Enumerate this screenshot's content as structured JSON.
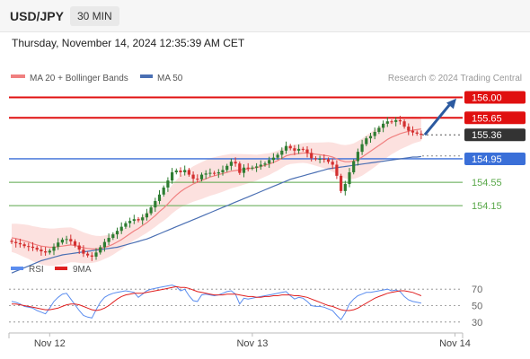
{
  "header": {
    "pair": "USD/JPY",
    "timeframe": "30 MIN",
    "timestamp": "Thursday, November 14, 2024 12:35:39 AM CET",
    "credit": "Research © 2024 Trading Central"
  },
  "colors": {
    "up": "#2e7d32",
    "down": "#d32f2f",
    "resistance": "#e01010",
    "support": "#3a6fd8",
    "target": "#5aa84a",
    "ma20": "#f08080",
    "ma50": "#4a6fb3",
    "band": "#fbd7d4",
    "rsi": "#5b8def",
    "rsi_ma": "#e02020",
    "arrow": "#2c5aa0",
    "current": "#333333"
  },
  "chart_data": [
    {
      "type": "candlestick",
      "name": "price",
      "legend": [
        {
          "label": "MA 20 + Bollinger Bands",
          "color": "#f08080"
        },
        {
          "label": "MA 50",
          "color": "#4a6fb3"
        }
      ],
      "ylim": [
        153.34,
        156.13
      ],
      "x_ticks": [
        {
          "label": "Nov 12",
          "index": 9
        },
        {
          "label": "Nov 13",
          "index": 57
        },
        {
          "label": "Nov 14",
          "index": 105
        }
      ],
      "levels": [
        {
          "label": "156.00",
          "value": 156.0,
          "kind": "resistance"
        },
        {
          "label": "155.65",
          "value": 155.65,
          "kind": "resistance"
        },
        {
          "label": "155.36",
          "value": 155.36,
          "kind": "current"
        },
        {
          "label": "154.95",
          "value": 154.95,
          "kind": "support"
        },
        {
          "label": "154.55",
          "value": 154.55,
          "kind": "target"
        },
        {
          "label": "154.15",
          "value": 154.15,
          "kind": "target"
        }
      ],
      "close": [
        153.53,
        153.51,
        153.49,
        153.46,
        153.45,
        153.43,
        153.4,
        153.37,
        153.35,
        153.38,
        153.45,
        153.52,
        153.57,
        153.58,
        153.54,
        153.47,
        153.4,
        153.33,
        153.3,
        153.28,
        153.35,
        153.44,
        153.53,
        153.6,
        153.66,
        153.72,
        153.79,
        153.85,
        153.89,
        153.92,
        153.9,
        153.95,
        154.02,
        154.12,
        154.23,
        154.34,
        154.46,
        154.58,
        154.72,
        154.75,
        154.72,
        154.76,
        154.68,
        154.61,
        154.6,
        154.68,
        154.7,
        154.71,
        154.7,
        154.72,
        154.76,
        154.83,
        154.9,
        154.87,
        154.71,
        154.8,
        154.79,
        154.8,
        154.82,
        154.85,
        154.87,
        154.93,
        154.97,
        155.02,
        155.09,
        155.17,
        155.13,
        155.09,
        155.12,
        155.11,
        155.05,
        154.96,
        154.95,
        154.95,
        154.94,
        154.9,
        154.85,
        154.66,
        154.4,
        154.52,
        154.72,
        154.91,
        155.07,
        155.2,
        155.3,
        155.34,
        155.41,
        155.48,
        155.55,
        155.59,
        155.58,
        155.61,
        155.59,
        155.5,
        155.43,
        155.4,
        155.38,
        155.36
      ],
      "ma20": [
        153.6,
        153.59,
        153.57,
        153.55,
        153.53,
        153.5,
        153.48,
        153.46,
        153.45,
        153.44,
        153.44,
        153.45,
        153.46,
        153.47,
        153.48,
        153.47,
        153.45,
        153.43,
        153.42,
        153.41,
        153.41,
        153.42,
        153.44,
        153.46,
        153.49,
        153.53,
        153.57,
        153.62,
        153.67,
        153.72,
        153.76,
        153.81,
        153.86,
        153.92,
        153.98,
        154.05,
        154.11,
        154.18,
        154.26,
        154.33,
        154.39,
        154.44,
        154.48,
        154.52,
        154.55,
        154.58,
        154.61,
        154.64,
        154.66,
        154.68,
        154.7,
        154.72,
        154.74,
        154.75,
        154.76,
        154.77,
        154.78,
        154.79,
        154.8,
        154.82,
        154.84,
        154.86,
        154.89,
        154.92,
        154.96,
        155.0,
        155.02,
        155.03,
        155.04,
        155.05,
        155.05,
        155.04,
        155.03,
        155.02,
        155.01,
        155.0,
        154.98,
        154.95,
        154.92,
        154.9,
        154.9,
        154.91,
        154.94,
        154.98,
        155.03,
        155.08,
        155.13,
        155.18,
        155.23,
        155.28,
        155.32,
        155.35,
        155.38,
        155.4,
        155.42,
        155.44,
        155.45,
        155.46
      ],
      "ma50": [
        153.0,
        153.03,
        153.06,
        153.09,
        153.12,
        153.15,
        153.18,
        153.21,
        153.23,
        153.25,
        153.27,
        153.29,
        153.31,
        153.32,
        153.33,
        153.34,
        153.35,
        153.36,
        153.37,
        153.38,
        153.39,
        153.4,
        153.41,
        153.42,
        153.43,
        153.44,
        153.46,
        153.48,
        153.5,
        153.52,
        153.54,
        153.56,
        153.58,
        153.61,
        153.64,
        153.67,
        153.7,
        153.73,
        153.76,
        153.79,
        153.82,
        153.85,
        153.88,
        153.91,
        153.94,
        153.97,
        154.0,
        154.03,
        154.06,
        154.09,
        154.12,
        154.15,
        154.18,
        154.21,
        154.24,
        154.27,
        154.3,
        154.33,
        154.36,
        154.39,
        154.42,
        154.45,
        154.48,
        154.51,
        154.54,
        154.57,
        154.6,
        154.62,
        154.64,
        154.66,
        154.68,
        154.7,
        154.72,
        154.74,
        154.76,
        154.78,
        154.79,
        154.8,
        154.81,
        154.82,
        154.83,
        154.84,
        154.85,
        154.86,
        154.87,
        154.88,
        154.89,
        154.9,
        154.91,
        154.92,
        154.93,
        154.94,
        154.95,
        154.96,
        154.97,
        154.98,
        154.98,
        154.99
      ]
    },
    {
      "type": "line",
      "name": "rsi",
      "legend": [
        {
          "label": "RSI",
          "color": "#5b8def"
        },
        {
          "label": "9MA",
          "color": "#e02020"
        }
      ],
      "ylim": [
        20,
        80
      ],
      "y_ticks": [
        70,
        50,
        30
      ],
      "rsi": [
        55,
        54,
        52,
        49,
        48,
        47,
        44,
        42,
        40,
        47,
        55,
        60,
        64,
        65,
        58,
        51,
        44,
        38,
        36,
        35,
        45,
        54,
        60,
        63,
        65,
        66,
        67,
        68,
        67,
        66,
        60,
        64,
        68,
        70,
        71,
        72,
        73,
        74,
        75,
        73,
        68,
        70,
        62,
        56,
        55,
        63,
        64,
        63,
        62,
        63,
        65,
        67,
        68,
        64,
        52,
        59,
        58,
        59,
        60,
        61,
        62,
        63,
        64,
        65,
        66,
        67,
        62,
        58,
        60,
        59,
        55,
        50,
        49,
        49,
        48,
        46,
        44,
        38,
        33,
        41,
        52,
        58,
        62,
        64,
        66,
        66,
        67,
        68,
        69,
        70,
        68,
        69,
        67,
        61,
        57,
        55,
        54,
        53
      ],
      "ma9": [
        52,
        52,
        51,
        50,
        49,
        48,
        47,
        46,
        45,
        45,
        46,
        47,
        49,
        51,
        52,
        52,
        51,
        49,
        47,
        45,
        44,
        45,
        47,
        50,
        54,
        58,
        61,
        63,
        64,
        65,
        65,
        65,
        66,
        67,
        68,
        69,
        70,
        71,
        72,
        73,
        72,
        72,
        71,
        69,
        67,
        66,
        65,
        64,
        63,
        63,
        63,
        64,
        64,
        64,
        63,
        62,
        61,
        61,
        60,
        60,
        61,
        61,
        62,
        62,
        63,
        63,
        63,
        62,
        62,
        61,
        60,
        58,
        56,
        54,
        52,
        50,
        49,
        47,
        45,
        44,
        44,
        45,
        47,
        50,
        53,
        56,
        59,
        61,
        63,
        65,
        66,
        67,
        68,
        68,
        67,
        66,
        64,
        62
      ]
    }
  ]
}
